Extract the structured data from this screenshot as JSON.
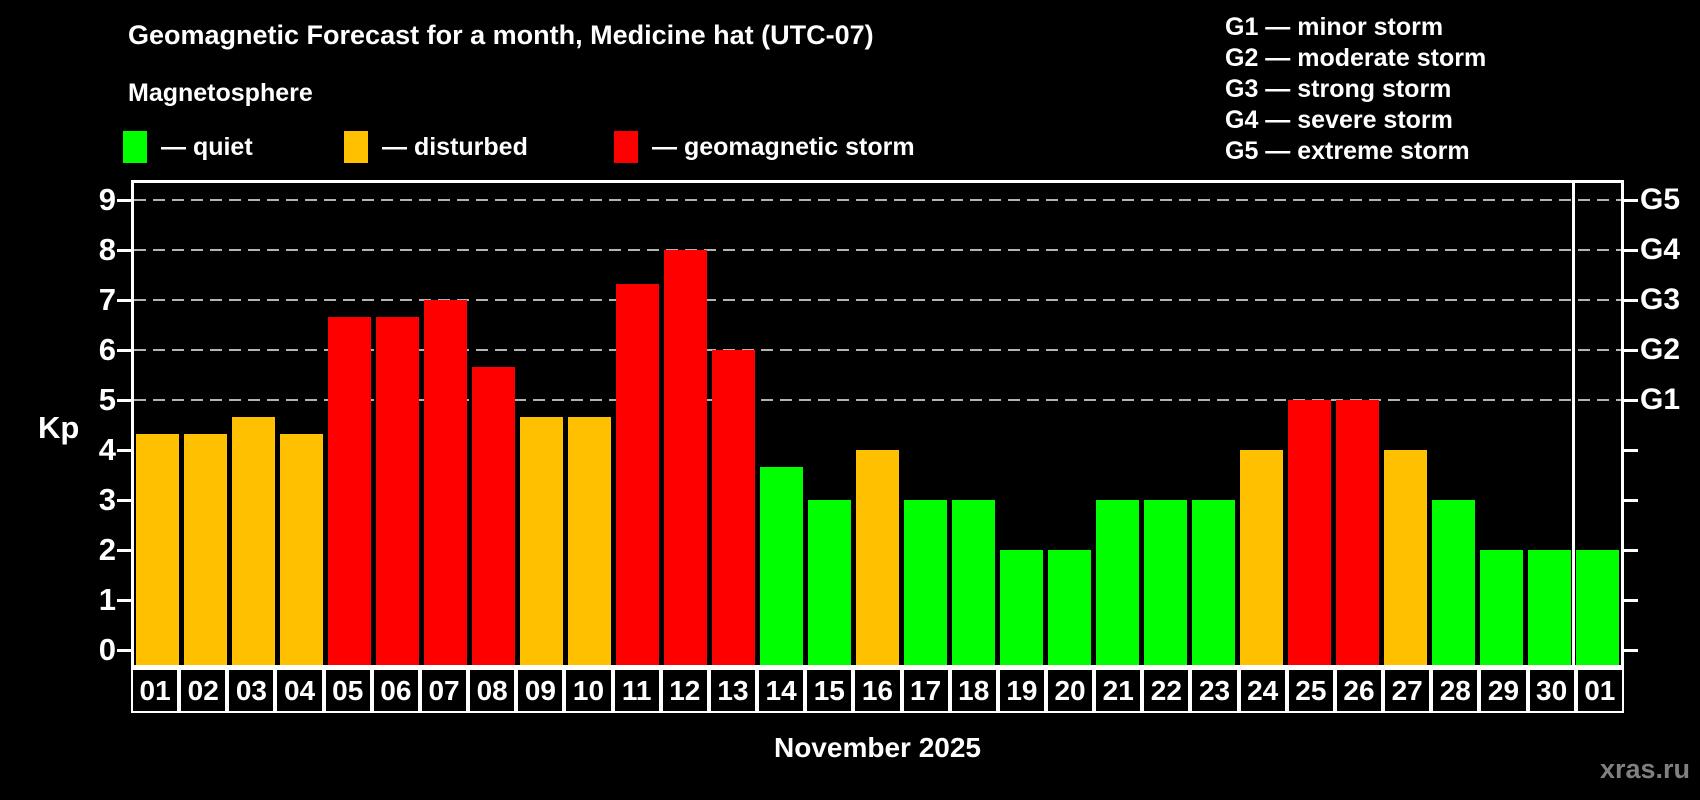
{
  "title": "Geomagnetic Forecast for a month, Medicine hat (UTC-07)",
  "subtitle": "Magnetosphere",
  "condition_legend": {
    "quiet": {
      "label": "— quiet",
      "color": "#00ff00"
    },
    "disturbed": {
      "label": "— disturbed",
      "color": "#ffc000"
    },
    "storm": {
      "label": "— geomagnetic storm",
      "color": "#ff0000"
    }
  },
  "storm_scale_legend": {
    "items": [
      "G1 — minor storm",
      "G2 — moderate storm",
      "G3 — strong storm",
      "G4 — severe storm",
      "G5 — extreme storm"
    ]
  },
  "watermark": "xras.ru",
  "chart_data": {
    "type": "bar",
    "title": "Geomagnetic Forecast for a month, Medicine hat (UTC-07)",
    "xlabel": "November 2025",
    "ylabel": "Kp",
    "ylim": [
      0,
      9
    ],
    "grid": "dashed horizontal at storm levels only",
    "y_ticks": [
      0,
      1,
      2,
      3,
      4,
      5,
      6,
      7,
      8,
      9
    ],
    "gridlines_at": [
      5,
      6,
      7,
      8,
      9
    ],
    "right_axis": [
      {
        "label": "G1",
        "value": 5
      },
      {
        "label": "G2",
        "value": 6
      },
      {
        "label": "G3",
        "value": 7
      },
      {
        "label": "G4",
        "value": 8
      },
      {
        "label": "G5",
        "value": 9
      }
    ],
    "categories": [
      "01",
      "02",
      "03",
      "04",
      "05",
      "06",
      "07",
      "08",
      "09",
      "10",
      "11",
      "12",
      "13",
      "14",
      "15",
      "16",
      "17",
      "18",
      "19",
      "20",
      "21",
      "22",
      "23",
      "24",
      "25",
      "26",
      "27",
      "28",
      "29",
      "30",
      "01"
    ],
    "values": [
      4.33,
      4.33,
      4.67,
      4.33,
      6.67,
      6.67,
      7,
      5.67,
      4.67,
      4.67,
      7.33,
      8,
      6,
      3.67,
      3,
      4,
      3,
      3,
      2,
      2,
      3,
      3,
      3,
      4,
      5,
      5,
      4,
      3,
      2,
      2,
      2
    ],
    "conditions": [
      "disturbed",
      "disturbed",
      "disturbed",
      "disturbed",
      "storm",
      "storm",
      "storm",
      "storm",
      "disturbed",
      "disturbed",
      "storm",
      "storm",
      "storm",
      "quiet",
      "quiet",
      "disturbed",
      "quiet",
      "quiet",
      "quiet",
      "quiet",
      "quiet",
      "quiet",
      "quiet",
      "disturbed",
      "storm",
      "storm",
      "disturbed",
      "quiet",
      "quiet",
      "quiet",
      "quiet"
    ],
    "colors": {
      "quiet": "#00ff00",
      "disturbed": "#ffc000",
      "storm": "#ff0000"
    },
    "month_separator_after_category_index": 29
  }
}
